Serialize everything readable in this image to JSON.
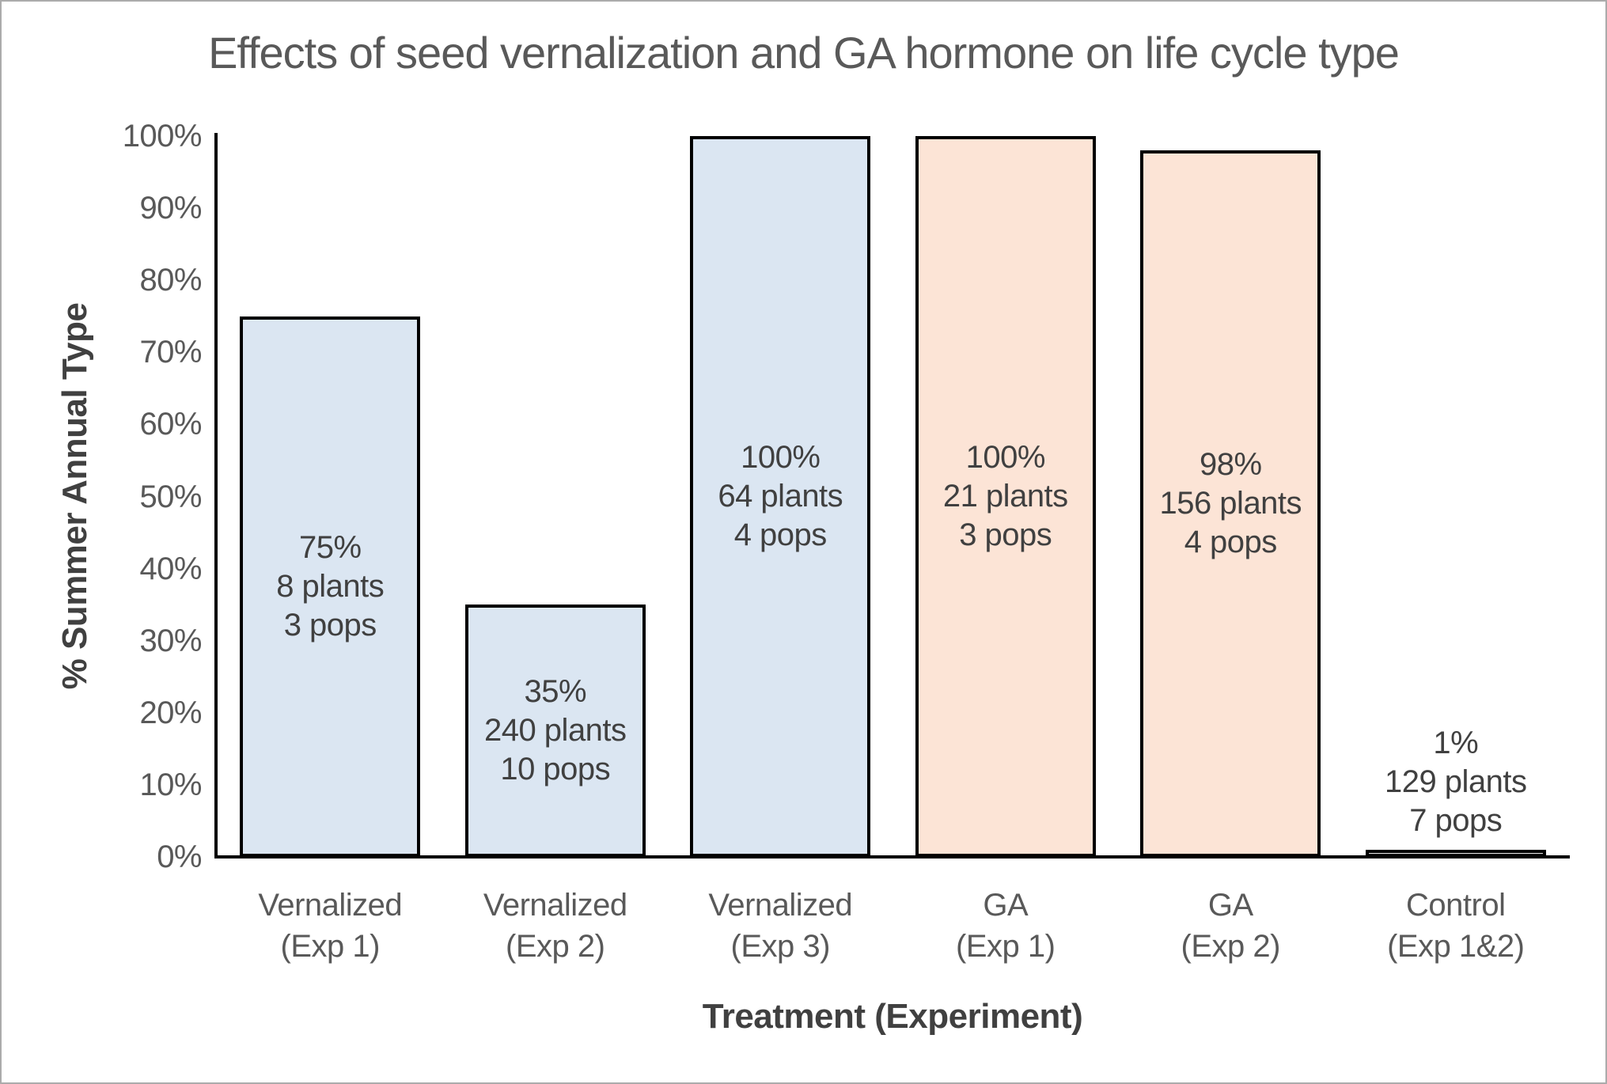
{
  "chart_data": {
    "type": "bar",
    "title": "Effects of seed vernalization and GA hormone on life cycle type",
    "xlabel": "Treatment  (Experiment)",
    "ylabel": "% Summer Annual Type",
    "ylim": [
      0,
      100
    ],
    "grid": false,
    "legend": "none",
    "y_ticks": [
      "0%",
      "10%",
      "20%",
      "30%",
      "40%",
      "50%",
      "60%",
      "70%",
      "80%",
      "90%",
      "100%"
    ],
    "bars": [
      {
        "category_line1": "Vernalized",
        "category_line2": "(Exp 1)",
        "value_pct": 75,
        "n_plants": 8,
        "n_pops": 3,
        "label_lines": [
          "75%",
          "8 plants",
          "3 pops"
        ],
        "fill": "#dbe6f2"
      },
      {
        "category_line1": "Vernalized",
        "category_line2": "(Exp 2)",
        "value_pct": 35,
        "n_plants": 240,
        "n_pops": 10,
        "label_lines": [
          "35%",
          "240 plants",
          "10 pops"
        ],
        "fill": "#dbe6f2"
      },
      {
        "category_line1": "Vernalized",
        "category_line2": "(Exp 3)",
        "value_pct": 100,
        "n_plants": 64,
        "n_pops": 4,
        "label_lines": [
          "100%",
          "64 plants",
          "4 pops"
        ],
        "fill": "#dbe6f2"
      },
      {
        "category_line1": "GA",
        "category_line2": "(Exp 1)",
        "value_pct": 100,
        "n_plants": 21,
        "n_pops": 3,
        "label_lines": [
          "100%",
          "21 plants",
          "3 pops"
        ],
        "fill": "#fce4d6"
      },
      {
        "category_line1": "GA",
        "category_line2": "(Exp 2)",
        "value_pct": 98,
        "n_plants": 156,
        "n_pops": 4,
        "label_lines": [
          "98%",
          "156 plants",
          "4 pops"
        ],
        "fill": "#fce4d6"
      },
      {
        "category_line1": "Control",
        "category_line2": "(Exp 1&2)",
        "value_pct": 1,
        "n_plants": 129,
        "n_pops": 7,
        "label_lines": [
          "1%",
          "129 plants",
          "7 pops"
        ],
        "fill": "#ebebeb"
      }
    ],
    "colors": {
      "vernalized_fill": "#dbe6f2",
      "ga_fill": "#fce4d6",
      "control_fill": "#ebebeb",
      "bar_border": "#000000",
      "axis_line": "#000000",
      "title_text": "#595959",
      "tick_text": "#595959",
      "label_text": "#404040",
      "frame_border": "#ababab"
    }
  }
}
